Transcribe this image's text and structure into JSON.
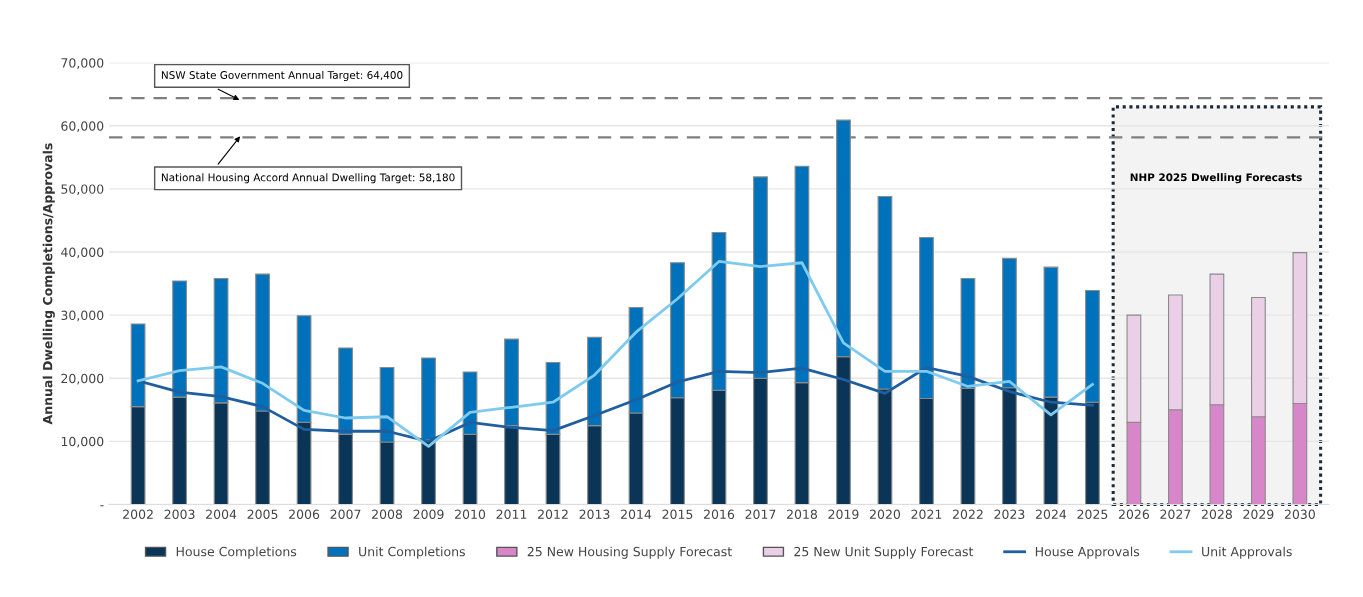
{
  "chart_data": {
    "type": "bar",
    "stacked": true,
    "ylabel": "Annual Dwelling Completions/Approvals",
    "categories": [
      "2002",
      "2003",
      "2004",
      "2005",
      "2006",
      "2007",
      "2008",
      "2009",
      "2010",
      "2011",
      "2012",
      "2013",
      "2014",
      "2015",
      "2016",
      "2017",
      "2018",
      "2019",
      "2020",
      "2021",
      "2022",
      "2023",
      "2024",
      "2025",
      "2026",
      "2027",
      "2028",
      "2029",
      "2030"
    ],
    "series": [
      {
        "name": "House Completions",
        "color": "#0b3556",
        "values": [
          15500,
          17000,
          16100,
          14800,
          13000,
          11100,
          9900,
          10300,
          11100,
          12500,
          11100,
          12500,
          14500,
          16900,
          18100,
          20000,
          19300,
          23400,
          18300,
          16800,
          18400,
          18500,
          17000,
          16200,
          null,
          null,
          null,
          null,
          null
        ]
      },
      {
        "name": "Unit Completions",
        "color": "#0072bc",
        "values": [
          13100,
          18400,
          19700,
          21700,
          16900,
          13700,
          11800,
          12900,
          9900,
          13700,
          11400,
          14000,
          16700,
          21400,
          25000,
          31900,
          34300,
          37500,
          30500,
          25500,
          17400,
          20500,
          20600,
          17700,
          null,
          null,
          null,
          null,
          null
        ]
      },
      {
        "name": "25 New Housing Supply Forecast",
        "color": "#d787c9",
        "values": [
          null,
          null,
          null,
          null,
          null,
          null,
          null,
          null,
          null,
          null,
          null,
          null,
          null,
          null,
          null,
          null,
          null,
          null,
          null,
          null,
          null,
          null,
          null,
          null,
          13000,
          15000,
          15800,
          13900,
          16000
        ]
      },
      {
        "name": "25 New Unit Supply Forecast",
        "color": "#ebcfe6",
        "values": [
          null,
          null,
          null,
          null,
          null,
          null,
          null,
          null,
          null,
          null,
          null,
          null,
          null,
          null,
          null,
          null,
          null,
          null,
          null,
          null,
          null,
          null,
          null,
          null,
          17000,
          18200,
          20700,
          18900,
          23900
        ]
      },
      {
        "name": "House Approvals",
        "type": "line",
        "color": "#1f5fa0",
        "values": [
          19600,
          17800,
          17100,
          15500,
          11900,
          11600,
          11600,
          10000,
          13000,
          12200,
          11700,
          14100,
          16600,
          19400,
          21100,
          20900,
          21600,
          19800,
          17600,
          21700,
          20300,
          17900,
          16200,
          15700,
          null,
          null,
          null,
          null,
          null
        ]
      },
      {
        "name": "Unit Approvals",
        "type": "line",
        "color": "#7ecbef",
        "values": [
          19600,
          21200,
          21800,
          19200,
          14900,
          13700,
          13900,
          9200,
          14600,
          15400,
          16200,
          20500,
          27300,
          32600,
          38500,
          37700,
          38300,
          25600,
          21100,
          21100,
          18700,
          19500,
          14200,
          19000,
          null,
          null,
          null,
          null,
          null
        ]
      }
    ],
    "ylim": [
      0,
      70000
    ],
    "yticks": [
      {
        "value": 0,
        "label": "-"
      },
      {
        "value": 10000,
        "label": "10,000"
      },
      {
        "value": 20000,
        "label": "20,000"
      },
      {
        "value": 30000,
        "label": "30,000"
      },
      {
        "value": 40000,
        "label": "40,000"
      },
      {
        "value": 50000,
        "label": "50,000"
      },
      {
        "value": 60000,
        "label": "60,000"
      },
      {
        "value": 70000,
        "label": "70,000"
      }
    ],
    "ref_lines": [
      {
        "axis": "y",
        "value": 64400,
        "label": "NSW State Government Annual Target: 64,400",
        "color": "#7f7f7f",
        "line_style": "dashed"
      },
      {
        "axis": "y",
        "value": 58180,
        "label": "National Housing Accord Annual Dwelling Target: 58,180",
        "color": "#7f7f7f",
        "line_style": "dashed"
      }
    ],
    "bands": [
      {
        "axis": "x",
        "from": "2026",
        "to": "2030",
        "label": "NHP 2025 Dwelling Forecasts",
        "color": "#f3f3f3"
      }
    ],
    "grid": "y",
    "legend": "bottom"
  }
}
